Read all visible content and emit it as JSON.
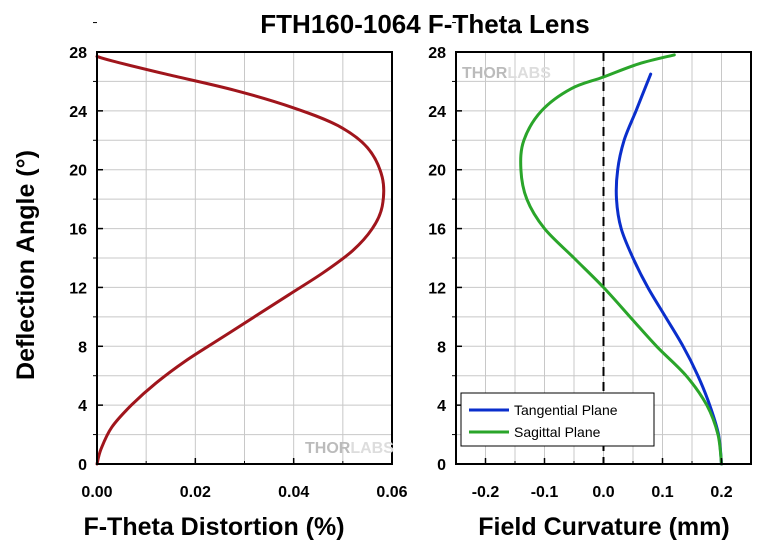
{
  "title": "FTH160-1064 F-Theta Lens",
  "watermark": {
    "part1": "THOR",
    "part2": "LABS"
  },
  "chart_data": [
    {
      "type": "line",
      "xlabel": "F-Theta Distortion (%)",
      "ylabel": "Deflection Angle (°)",
      "xlim": [
        0,
        0.06
      ],
      "ylim": [
        0,
        28
      ],
      "xticks": [
        "0.00",
        "0.02",
        "0.04",
        "0.06"
      ],
      "xtick_values": [
        0,
        0.02,
        0.04,
        0.06
      ],
      "yticks": [
        "0",
        "4",
        "8",
        "12",
        "16",
        "20",
        "24",
        "28"
      ],
      "ytick_values": [
        0,
        4,
        8,
        12,
        16,
        20,
        24,
        28
      ],
      "grid": true,
      "series": [
        {
          "color": "#A0151C",
          "x": [
            0,
            0.0008,
            0.003,
            0.007,
            0.012,
            0.018,
            0.025,
            0.032,
            0.039,
            0.046,
            0.052,
            0.056,
            0.058,
            0.058,
            0.055,
            0.049,
            0.04,
            0.028,
            0.014,
            0.003,
            0
          ],
          "y": [
            0,
            1,
            2.5,
            4,
            5.5,
            7,
            8.5,
            10,
            11.5,
            13,
            14.5,
            16,
            17.5,
            19.5,
            21.5,
            23,
            24.2,
            25.4,
            26.5,
            27.4,
            27.7
          ]
        }
      ]
    },
    {
      "type": "line",
      "xlabel": "Field Curvature (mm)",
      "xlim": [
        -0.25,
        0.25
      ],
      "ylim": [
        0,
        28
      ],
      "xticks": [
        "-0.2",
        "-0.1",
        "0.0",
        "0.1",
        "0.2"
      ],
      "xtick_values": [
        -0.2,
        -0.1,
        0,
        0.1,
        0.2
      ],
      "yticks": [
        "0",
        "4",
        "8",
        "12",
        "16",
        "20",
        "24",
        "28"
      ],
      "ytick_values": [
        0,
        4,
        8,
        12,
        16,
        20,
        24,
        28
      ],
      "grid": true,
      "vline": {
        "x": 0,
        "style": "dashed"
      },
      "legend_position": "bottom-left",
      "series": [
        {
          "name": "Tangential Plane",
          "color": "#0A2ECC",
          "x": [
            0.2,
            0.195,
            0.18,
            0.16,
            0.135,
            0.105,
            0.075,
            0.05,
            0.03,
            0.022,
            0.024,
            0.035,
            0.055,
            0.08
          ],
          "y": [
            0,
            2,
            4,
            6,
            8,
            10,
            12,
            14,
            16,
            18,
            20,
            22,
            24,
            26.5
          ]
        },
        {
          "name": "Sagittal Plane",
          "color": "#2AA52A",
          "x": [
            0.2,
            0.194,
            0.175,
            0.14,
            0.09,
            0.045,
            0.0,
            -0.05,
            -0.1,
            -0.13,
            -0.14,
            -0.135,
            -0.105,
            -0.055,
            0.0,
            0.06,
            0.12
          ],
          "y": [
            0,
            2,
            4,
            6,
            8,
            10,
            12,
            14,
            16,
            18,
            20,
            22,
            24,
            25.5,
            26.3,
            27.2,
            27.8
          ]
        }
      ]
    }
  ]
}
